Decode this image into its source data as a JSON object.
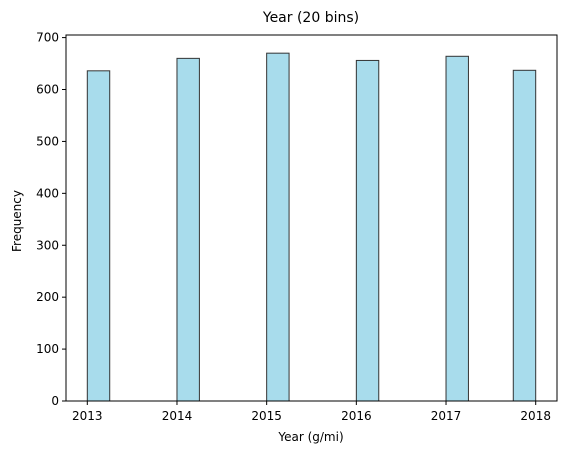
{
  "chart_data": {
    "type": "bar",
    "title": "Year (20 bins)",
    "xlabel": "Year (g/mi)",
    "ylabel": "Frequency",
    "xlim": [
      2012.7625,
      2018.2375
    ],
    "ylim": [
      0,
      705
    ],
    "grid": false,
    "legend": "none",
    "bin_start": 2013.0,
    "bin_end": 2018.0,
    "bin_count": 20,
    "bins": [
      {
        "start": 2013.0,
        "end": 2013.25,
        "count": 636
      },
      {
        "start": 2014.0,
        "end": 2014.25,
        "count": 660
      },
      {
        "start": 2015.0,
        "end": 2015.25,
        "count": 670
      },
      {
        "start": 2016.0,
        "end": 2016.25,
        "count": 656
      },
      {
        "start": 2017.0,
        "end": 2017.25,
        "count": 664
      },
      {
        "start": 2017.75,
        "end": 2018.0,
        "count": 637
      }
    ],
    "x_ticks": [
      {
        "value": 2013,
        "label": "2013"
      },
      {
        "value": 2014,
        "label": "2014"
      },
      {
        "value": 2015,
        "label": "2015"
      },
      {
        "value": 2016,
        "label": "2016"
      },
      {
        "value": 2017,
        "label": "2017"
      },
      {
        "value": 2018,
        "label": "2018"
      }
    ],
    "y_ticks": [
      {
        "value": 0,
        "label": "0"
      },
      {
        "value": 100,
        "label": "100"
      },
      {
        "value": 200,
        "label": "200"
      },
      {
        "value": 300,
        "label": "300"
      },
      {
        "value": 400,
        "label": "400"
      },
      {
        "value": 500,
        "label": "500"
      },
      {
        "value": 600,
        "label": "600"
      },
      {
        "value": 700,
        "label": "700"
      }
    ],
    "colors": {
      "bar_fill": "#a8dcec",
      "bar_edge": "#333333",
      "axis": "#000000",
      "background": "#ffffff"
    }
  }
}
